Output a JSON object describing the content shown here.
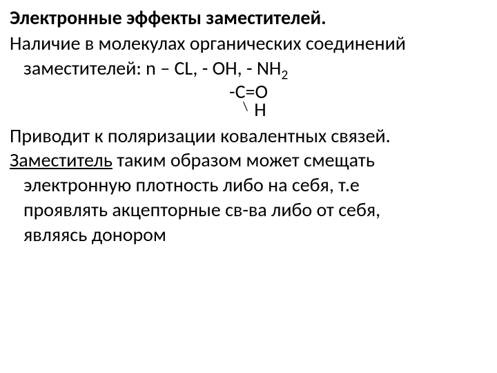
{
  "title": "Электронные эффекты заместителей.",
  "para1_line1": "Наличие в молекулах органических соединений",
  "para1_line2_prefix": "заместителей: n – CL, - OH, - NH",
  "para1_line2_sub": "2",
  "formula": {
    "line1": "-C=O",
    "slash": "\\",
    "line2": "H"
  },
  "para2": "Приводит к поляризации ковалентных связей.",
  "para3_underlined": "Заместитель",
  "para3_rest_line1": " таким образом может смещать",
  "para3_line2": "электронную плотность либо на себя, т.е",
  "para3_line3": "проявлять акцепторные св-ва либо от себя,",
  "para3_line4": "являясь донором",
  "colors": {
    "background": "#ffffff",
    "text": "#000000"
  },
  "typography": {
    "font_family": "Calibri, Arial, sans-serif",
    "title_fontsize": 28,
    "body_fontsize": 28,
    "title_weight": "bold"
  }
}
